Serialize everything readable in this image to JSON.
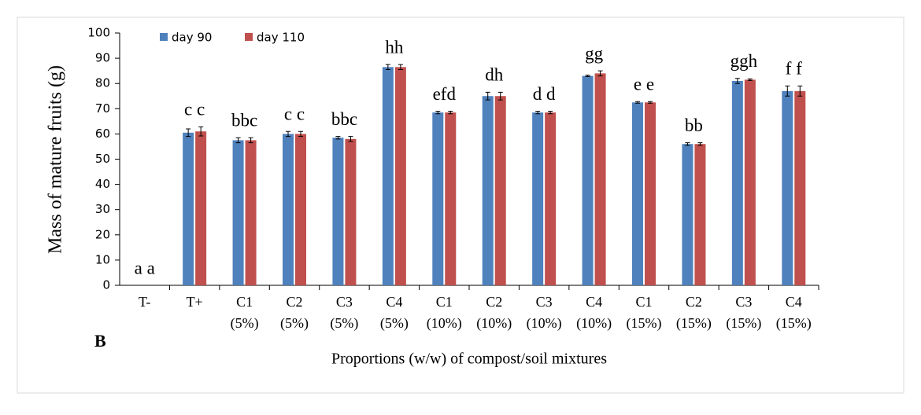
{
  "chart_data": {
    "type": "bar",
    "y_label": "Mass of mature fruits (g)",
    "x_label": "Proportions (w/w) of compost/soil mixtures",
    "panel_label": "B",
    "categories": [
      [
        "T-"
      ],
      [
        "T+"
      ],
      [
        "C1",
        "(5%)"
      ],
      [
        "C2",
        "(5%)"
      ],
      [
        "C3",
        "(5%)"
      ],
      [
        "C4",
        "(5%)"
      ],
      [
        "C1",
        "(10%)"
      ],
      [
        "C2",
        "(10%)"
      ],
      [
        "C3",
        "(10%)"
      ],
      [
        "C4",
        "(10%)"
      ],
      [
        "C1",
        "(15%)"
      ],
      [
        "C2",
        "(15%)"
      ],
      [
        "C3",
        "(15%)"
      ],
      [
        "C4",
        "(15%)"
      ]
    ],
    "annotations": [
      "a a",
      "c c",
      "bbc",
      "c c",
      "bbc",
      "hh",
      "efd",
      "dh",
      "d d",
      "gg",
      "e e",
      "bb",
      "ggh",
      "f f"
    ],
    "series": [
      {
        "name": "day 90",
        "color": "#4f81bd",
        "values": [
          0,
          60.5,
          57.5,
          60,
          58.5,
          86.5,
          68.5,
          75,
          68.5,
          83,
          72.5,
          56,
          81,
          77
        ],
        "errors": [
          0,
          1.5,
          1,
          1,
          0.5,
          1,
          0.5,
          1.5,
          0.5,
          0.3,
          0.3,
          0.5,
          1,
          2
        ]
      },
      {
        "name": "day 110",
        "color": "#c0504d",
        "values": [
          0,
          61,
          57.5,
          60,
          58,
          86.5,
          68.5,
          75,
          68.5,
          84,
          72.5,
          56,
          81.5,
          77
        ],
        "errors": [
          0,
          1.8,
          1,
          1,
          1,
          1,
          0.5,
          1.5,
          0.5,
          1,
          0.3,
          0.5,
          0.3,
          2
        ]
      }
    ],
    "ylim": [
      0,
      100
    ],
    "yticks": [
      0,
      10,
      20,
      30,
      40,
      50,
      60,
      70,
      80,
      90,
      100
    ]
  }
}
